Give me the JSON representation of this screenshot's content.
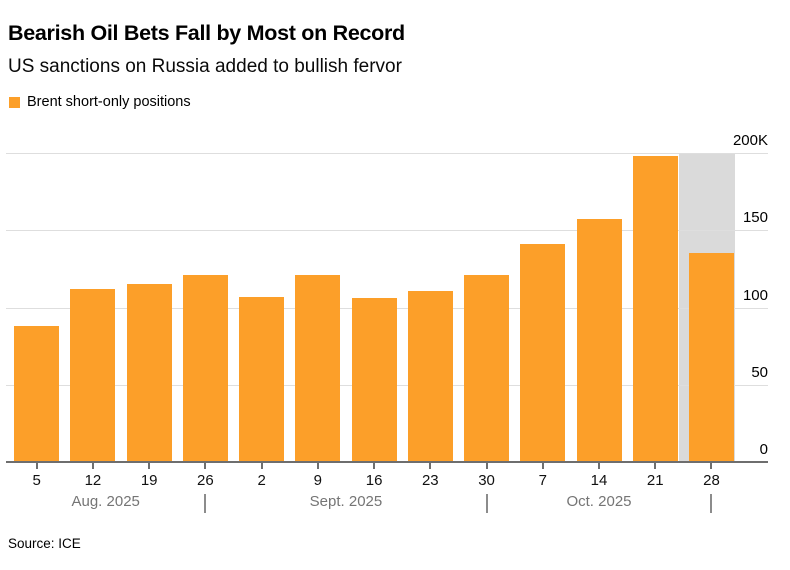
{
  "header": {
    "title": "Bearish Oil Bets Fall by Most on Record",
    "subtitle": "US sanctions on Russia added to bullish fervor"
  },
  "legend": {
    "label": "Brent short-only positions",
    "swatch_color": "#FC9F29"
  },
  "source": "Source: ICE",
  "chart_data": {
    "type": "bar",
    "title": "Bearish Oil Bets Fall by Most on Record",
    "subtitle": "US sanctions on Russia added to bullish fervor",
    "series_name": "Brent short-only positions",
    "categories": [
      "5",
      "12",
      "19",
      "26",
      "2",
      "9",
      "16",
      "23",
      "30",
      "7",
      "14",
      "21",
      "28"
    ],
    "values_thousands": [
      88,
      112,
      115,
      121,
      107,
      121,
      106,
      111,
      121,
      141,
      157,
      198,
      135
    ],
    "months": [
      {
        "label": "Aug. 2025",
        "last_index": 3
      },
      {
        "label": "Sept. 2025",
        "last_index": 8
      },
      {
        "label": "Oct. 2025",
        "last_index": 12
      }
    ],
    "y_axis": {
      "side": "right",
      "min": 0,
      "max": 200,
      "ticks": [
        0,
        50,
        100,
        150,
        200
      ],
      "tick_labels": [
        "0",
        "50",
        "100",
        "150",
        "200K"
      ]
    },
    "highlight": {
      "index": 12,
      "color": "#dadada"
    },
    "bar_color": "#FC9F29",
    "grid": true,
    "legend_position": "top-left"
  }
}
